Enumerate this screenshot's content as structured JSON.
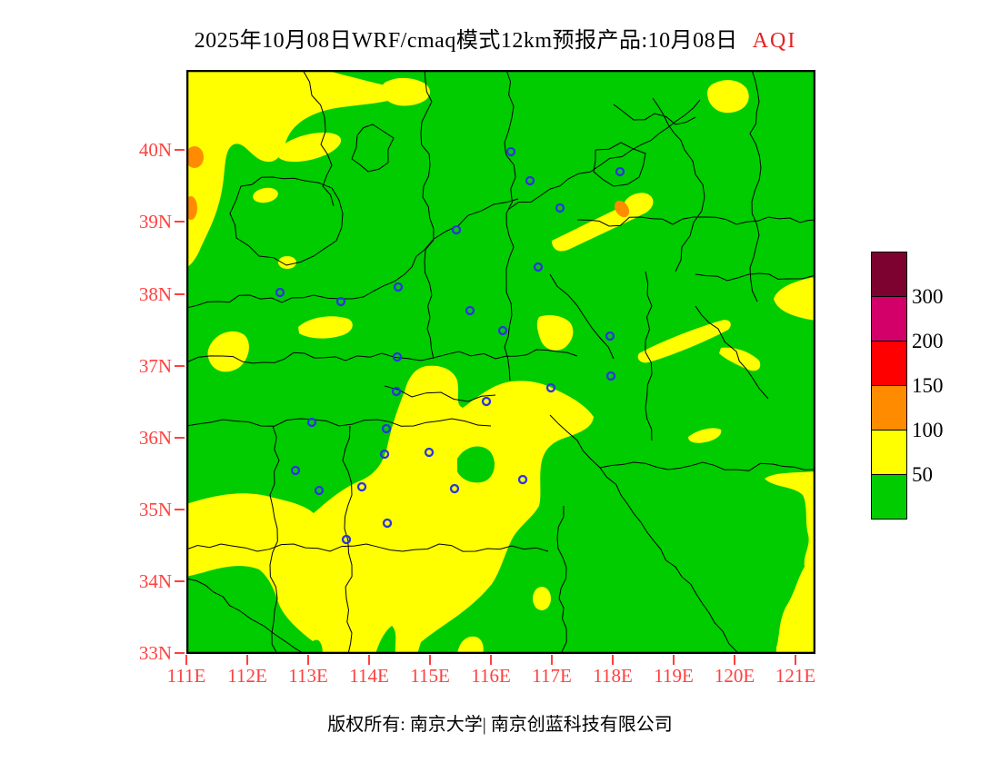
{
  "title": {
    "text": "2025年10月08日WRF/cmaq模式12km预报产品:10月08日",
    "highlight": "AQI"
  },
  "footer": {
    "copyright": "版权所有: 南京大学| 南京创蓝科技有限公司"
  },
  "axes": {
    "lat_labels": [
      "40N",
      "39N",
      "38N",
      "37N",
      "36N",
      "35N",
      "34N",
      "33N"
    ],
    "lon_labels": [
      "111E",
      "112E",
      "113E",
      "114E",
      "115E",
      "116E",
      "117E",
      "118E",
      "119E",
      "120E",
      "121E"
    ]
  },
  "legend": {
    "entries": [
      {
        "color": "#7D0230",
        "label": "300"
      },
      {
        "color": "#D4006A",
        "label": "200"
      },
      {
        "color": "#FF0000",
        "label": "150"
      },
      {
        "color": "#FF8C00",
        "label": "100"
      },
      {
        "color": "#FFFF00",
        "label": "50"
      },
      {
        "color": "#00CC00",
        "label": ""
      }
    ]
  },
  "colors": {
    "good": "#00CC00",
    "moderate": "#FFFF00",
    "unhealthy_sensitive": "#FF8C00",
    "unhealthy": "#FF0000",
    "very_unhealthy": "#D4006A",
    "hazardous": "#7D0230",
    "city_marker": "#2B35DF",
    "axis_text": "#FF4040",
    "title_highlight": "#E32222"
  },
  "map": {
    "city_markers": [
      [
        357,
        90
      ],
      [
        378,
        122
      ],
      [
        477,
        112
      ],
      [
        411,
        152
      ],
      [
        297,
        176
      ],
      [
        387,
        217
      ],
      [
        103,
        245
      ],
      [
        170,
        255
      ],
      [
        233,
        239
      ],
      [
        312,
        265
      ],
      [
        348,
        287
      ],
      [
        466,
        293
      ],
      [
        232,
        316
      ],
      [
        401,
        350
      ],
      [
        467,
        337
      ],
      [
        231,
        354
      ],
      [
        330,
        365
      ],
      [
        138,
        388
      ],
      [
        220,
        395
      ],
      [
        218,
        423
      ],
      [
        267,
        421
      ],
      [
        120,
        441
      ],
      [
        146,
        463
      ],
      [
        193,
        459
      ],
      [
        295,
        461
      ],
      [
        370,
        451
      ],
      [
        221,
        499
      ],
      [
        176,
        517
      ]
    ]
  }
}
